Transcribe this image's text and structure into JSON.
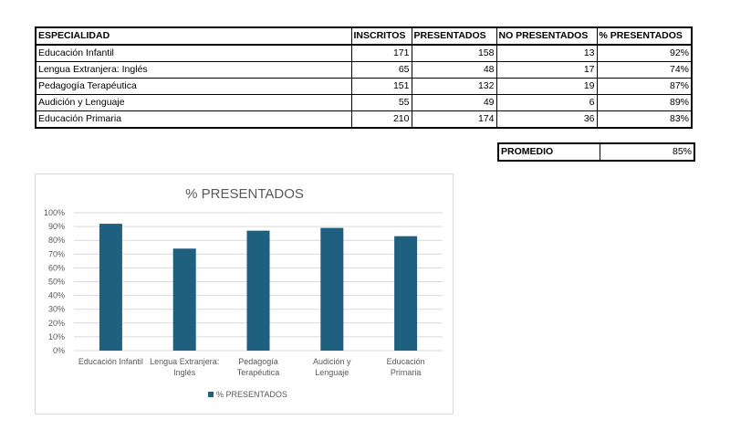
{
  "table": {
    "headers": [
      "ESPECIALIDAD",
      "INSCRITOS",
      "PRESENTADOS",
      "NO PRESENTADOS",
      "% PRESENTADOS"
    ],
    "rows": [
      [
        "Educación Infantil",
        "171",
        "158",
        "13",
        "92%"
      ],
      [
        "Lengua Extranjera: Inglés",
        "65",
        "48",
        "17",
        "74%"
      ],
      [
        "Pedagogía Terapéutica",
        "151",
        "132",
        "19",
        "87%"
      ],
      [
        "Audición y Lenguaje",
        "55",
        "49",
        "6",
        "89%"
      ],
      [
        "Educación Primaria",
        "210",
        "174",
        "36",
        "83%"
      ]
    ]
  },
  "average": {
    "label": "PROMEDIO",
    "value": "85%"
  },
  "chart_data": {
    "type": "bar",
    "title": "% PRESENTADOS",
    "categories": [
      "Educación Infantil",
      "Lengua Extranjera: Inglés",
      "Pedagogía Terapéutica",
      "Audición y Lenguaje",
      "Educación Primaria"
    ],
    "category_label_lines": [
      [
        "Educación Infantil"
      ],
      [
        "Lengua Extranjera:",
        "Inglés"
      ],
      [
        "Pedagogía",
        "Terapéutica"
      ],
      [
        "Audición y",
        "Lenguaje"
      ],
      [
        "Educación",
        "Primaria"
      ]
    ],
    "series": [
      {
        "name": "% PRESENTADOS",
        "values": [
          92,
          74,
          87,
          89,
          83
        ]
      }
    ],
    "ylim": [
      0,
      100
    ],
    "yticks": [
      0,
      10,
      20,
      30,
      40,
      50,
      60,
      70,
      80,
      90,
      100
    ],
    "ytick_labels": [
      "0%",
      "10%",
      "20%",
      "30%",
      "40%",
      "50%",
      "60%",
      "70%",
      "80%",
      "90%",
      "100%"
    ],
    "xlabel": "",
    "ylabel": "",
    "grid": true,
    "legend": "bottom",
    "bar_color": "#1f5f7f",
    "grid_color": "#d9d9d9",
    "text_color": "#595959"
  }
}
